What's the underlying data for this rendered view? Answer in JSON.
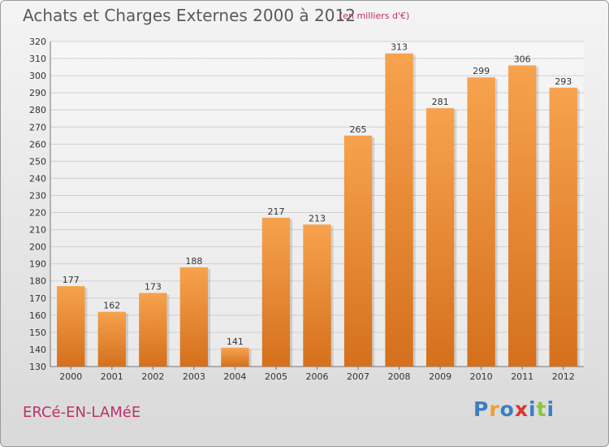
{
  "header": {
    "title": "Achats et Charges Externes 2000 à 2012",
    "subtitle": "(en milliers d'€)"
  },
  "footer": {
    "town": "ERCé-EN-LAMéE",
    "logo_letters": [
      "P",
      "r",
      "o",
      "x",
      "i",
      "t",
      "i"
    ],
    "logo_colors": [
      "#3a7fc4",
      "#f0a030",
      "#3a7fc4",
      "#e03030",
      "#3a7fc4",
      "#8cc63f",
      "#3a7fc4"
    ]
  },
  "chart_data": {
    "type": "bar",
    "title": "Achats et Charges Externes 2000 à 2012",
    "subtitle": "(en milliers d'€)",
    "categories": [
      "2000",
      "2001",
      "2002",
      "2003",
      "2004",
      "2005",
      "2006",
      "2007",
      "2008",
      "2009",
      "2010",
      "2011",
      "2012"
    ],
    "values": [
      177,
      162,
      173,
      188,
      141,
      217,
      213,
      265,
      313,
      281,
      299,
      306,
      293
    ],
    "ylim": [
      130,
      320
    ],
    "ytick_step": 10,
    "grid": true,
    "bar_color": "#f0923a",
    "bar_color_dark": "#d56f1a"
  }
}
